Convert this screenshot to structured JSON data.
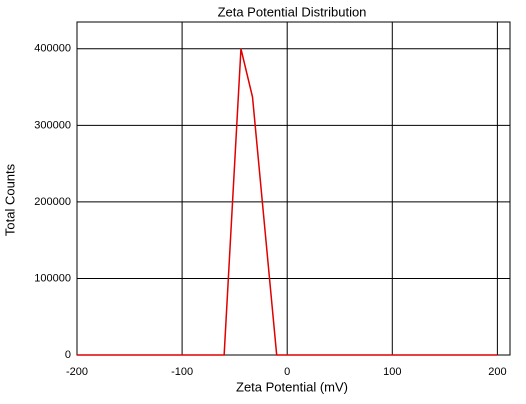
{
  "chart_data": {
    "type": "line",
    "title": "Zeta Potential Distribution",
    "x_label": "Zeta Potential (mV)",
    "y_label": "Total Counts",
    "series": [
      {
        "color": "#e00000",
        "x": [
          -200,
          -60,
          -44,
          -33,
          -10,
          200
        ],
        "values": [
          0,
          0,
          400000,
          337000,
          0,
          0
        ]
      }
    ],
    "xlim": [
      -200,
      212
    ],
    "xticks": [
      -200,
      -100,
      0,
      100,
      200
    ],
    "ylim": [
      0,
      435000
    ],
    "yticks": [
      0,
      100000,
      200000,
      300000,
      400000
    ],
    "grid": true
  }
}
